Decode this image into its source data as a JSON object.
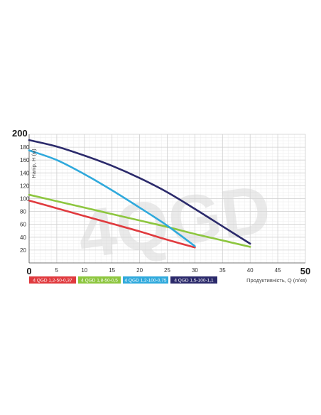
{
  "chart_data": {
    "type": "line",
    "watermark": "4QGD",
    "xlabel": "Продуктивність, Q (л/хв)",
    "ylabel": "Напір, Н (м)",
    "xlim": [
      0,
      50
    ],
    "ylim": [
      0,
      200
    ],
    "x_ticks": [
      "0",
      "5",
      "10",
      "15",
      "20",
      "25",
      "30",
      "35",
      "40",
      "45",
      "50"
    ],
    "y_ticks": [
      "20",
      "40",
      "60",
      "80",
      "100",
      "120",
      "140",
      "160",
      "180",
      "200"
    ],
    "grid": true,
    "legend_position": "bottom",
    "series": [
      {
        "name": "4 QGD 1,2-50-0,37",
        "color": "#e03a3e",
        "x": [
          0,
          5,
          10,
          15,
          20,
          25,
          30
        ],
        "y": [
          97,
          85,
          73,
          61,
          49,
          36,
          24
        ]
      },
      {
        "name": "4 QGD 1,8-50-0,5",
        "color": "#8dc63f",
        "x": [
          0,
          5,
          10,
          15,
          20,
          25,
          30,
          35,
          40
        ],
        "y": [
          106,
          96,
          86,
          76,
          66,
          56,
          45,
          35,
          25
        ]
      },
      {
        "name": "4 QGD 1,2-100-0,75",
        "color": "#2fa9dc",
        "x": [
          0,
          5,
          10,
          15,
          20,
          25,
          30
        ],
        "y": [
          175,
          160,
          138,
          113,
          86,
          58,
          26
        ]
      },
      {
        "name": "4 QGD 1,5-100-1,1",
        "color": "#2b2a6b",
        "x": [
          0,
          5,
          10,
          15,
          20,
          25,
          30,
          35,
          40
        ],
        "y": [
          191,
          181,
          167,
          151,
          132,
          110,
          84,
          57,
          30
        ]
      }
    ]
  }
}
